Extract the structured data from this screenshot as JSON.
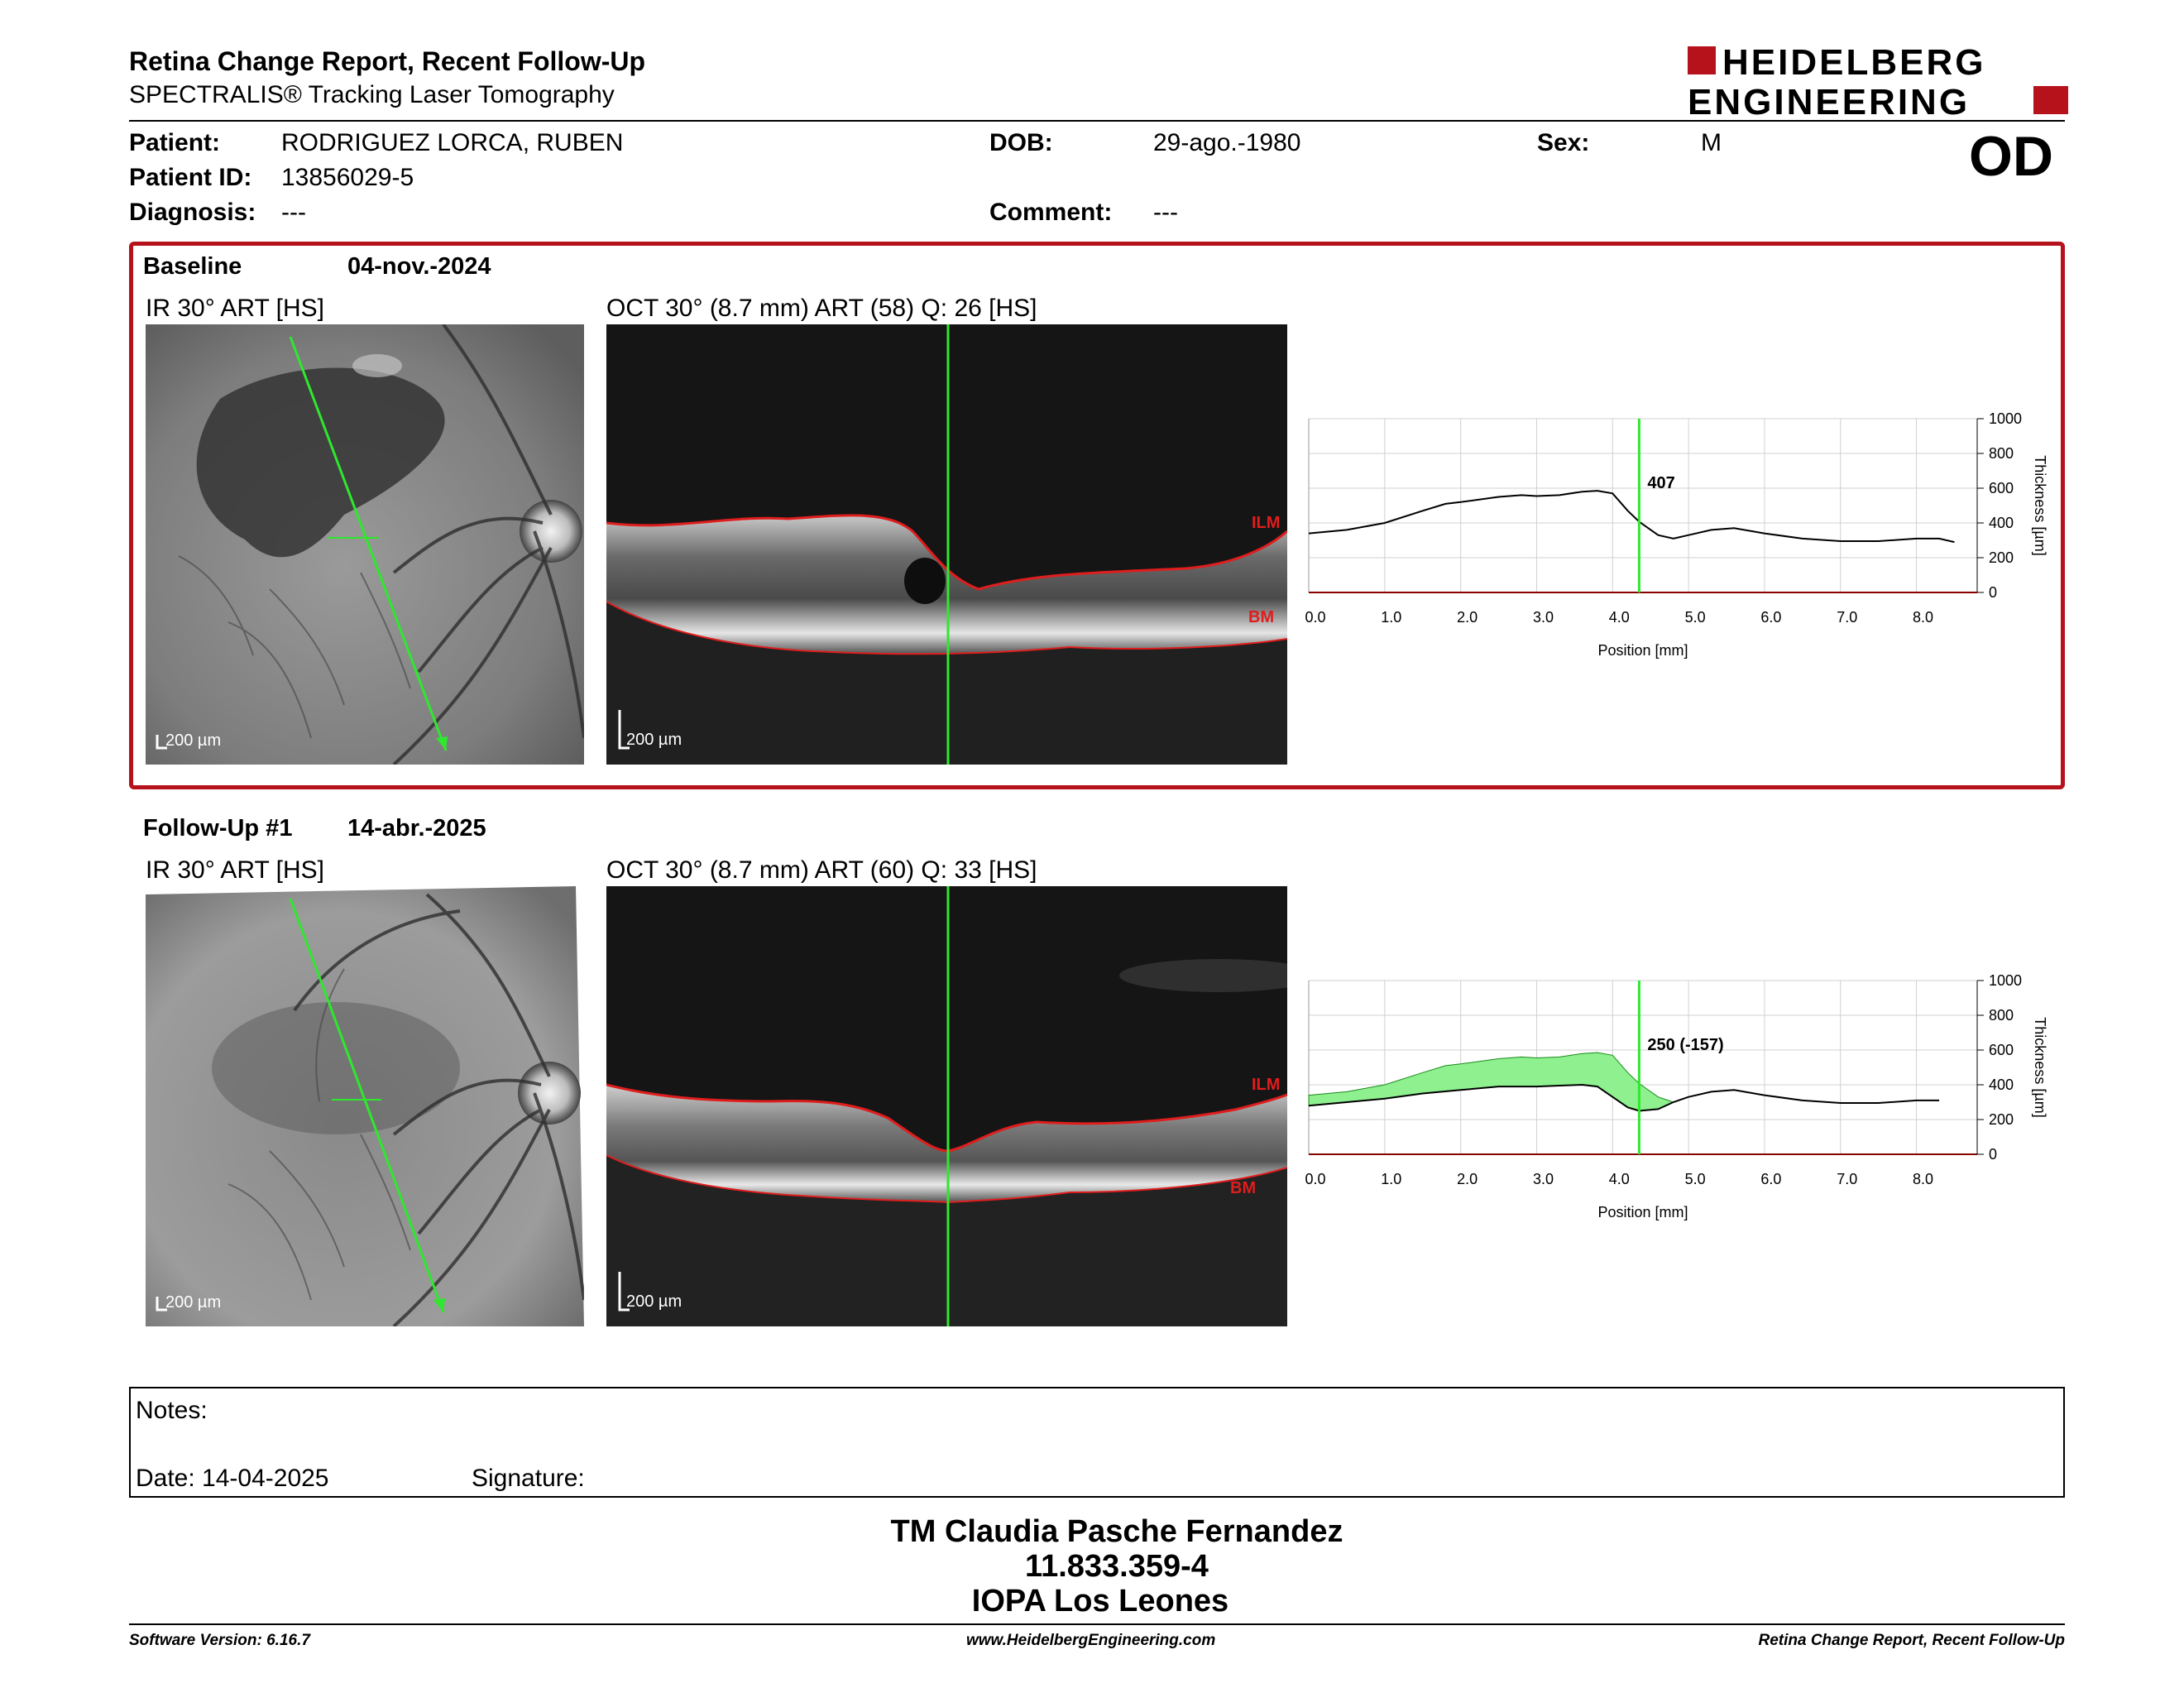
{
  "header": {
    "title": "Retina Change Report, Recent Follow-Up",
    "subtitle": "SPECTRALIS® Tracking Laser Tomography",
    "logo_line1": "HEIDELBERG",
    "logo_line2": "ENGINEERING",
    "brand_color": "#b5121b"
  },
  "patient": {
    "patient_label": "Patient:",
    "patient_value": "RODRIGUEZ LORCA, RUBEN",
    "id_label": "Patient ID:",
    "id_value": "13856029-5",
    "diagnosis_label": "Diagnosis:",
    "diagnosis_value": "---",
    "dob_label": "DOB:",
    "dob_value": "29-ago.-1980",
    "comment_label": "Comment:",
    "comment_value": "---",
    "sex_label": "Sex:",
    "sex_value": "M",
    "eye": "OD"
  },
  "baseline": {
    "label": "Baseline",
    "date": "04-nov.-2024",
    "ir_label": "IR 30° ART [HS]",
    "oct_label": "OCT 30° (8.7 mm) ART (58) Q: 26 [HS]",
    "ir_scale": "200 µm",
    "oct_scale": "200 µm",
    "ilm": "ILM",
    "bm": "BM"
  },
  "followup": {
    "label": "Follow-Up #1",
    "date": "14-abr.-2025",
    "ir_label": "IR 30° ART [HS]",
    "oct_label": "OCT 30° (8.7 mm) ART (60) Q: 33 [HS]",
    "ir_scale": "200 µm",
    "oct_scale": "200 µm",
    "ilm": "ILM",
    "bm": "BM"
  },
  "chart_data": [
    {
      "type": "line",
      "id": "baseline-thickness",
      "xlabel": "Position [mm]",
      "ylabel": "Thickness [µm]",
      "xlim": [
        0,
        8.8
      ],
      "ylim": [
        0,
        1000
      ],
      "x_ticks": [
        "0.0",
        "1.0",
        "2.0",
        "3.0",
        "4.0",
        "5.0",
        "6.0",
        "7.0",
        "8.0"
      ],
      "y_ticks": [
        "0",
        "200",
        "400",
        "600",
        "800",
        "1000"
      ],
      "cursor_x": 4.35,
      "cursor_label": "407",
      "grid": true,
      "series": [
        {
          "x": [
            0,
            0.5,
            1.0,
            1.5,
            1.8,
            2.0,
            2.5,
            2.8,
            3.0,
            3.3,
            3.6,
            3.8,
            4.0,
            4.2,
            4.35,
            4.6,
            4.8,
            5.0,
            5.3,
            5.6,
            6.0,
            6.5,
            7.0,
            7.5,
            8.0,
            8.3,
            8.5
          ],
          "y": [
            340,
            360,
            400,
            470,
            510,
            520,
            550,
            560,
            555,
            560,
            580,
            585,
            570,
            470,
            407,
            330,
            310,
            330,
            360,
            370,
            340,
            310,
            295,
            295,
            310,
            310,
            290
          ]
        }
      ]
    },
    {
      "type": "area",
      "id": "followup-thickness",
      "xlabel": "Position [mm]",
      "ylabel": "Thickness [µm]",
      "xlim": [
        0,
        8.8
      ],
      "ylim": [
        0,
        1000
      ],
      "x_ticks": [
        "0.0",
        "1.0",
        "2.0",
        "3.0",
        "4.0",
        "5.0",
        "6.0",
        "7.0",
        "8.0"
      ],
      "y_ticks": [
        "0",
        "200",
        "400",
        "600",
        "800",
        "1000"
      ],
      "cursor_x": 4.35,
      "cursor_label": "250 (-157)",
      "grid": true,
      "fill_color": "#8ef08e",
      "series": [
        {
          "x": [
            0,
            0.5,
            1.0,
            1.5,
            2.0,
            2.5,
            3.0,
            3.3,
            3.6,
            3.8,
            4.0,
            4.2,
            4.35,
            4.6,
            4.8,
            5.0,
            5.3,
            5.6,
            6.0,
            6.5,
            7.0,
            7.5,
            8.0,
            8.3
          ],
          "y": [
            280,
            300,
            320,
            350,
            370,
            390,
            390,
            395,
            400,
            390,
            330,
            270,
            250,
            260,
            300,
            330,
            360,
            370,
            340,
            310,
            295,
            295,
            310,
            310
          ]
        },
        {
          "x": [
            0,
            0.5,
            1.0,
            1.5,
            1.8,
            2.0,
            2.5,
            2.8,
            3.0,
            3.3,
            3.6,
            3.8,
            4.0,
            4.2,
            4.35,
            4.6,
            4.8
          ],
          "y": [
            340,
            360,
            400,
            470,
            510,
            520,
            550,
            560,
            555,
            560,
            580,
            585,
            570,
            470,
            407,
            330,
            300
          ]
        }
      ]
    }
  ],
  "notes": {
    "notes_label": "Notes:",
    "date_label": "Date: 14-04-2025",
    "signature_label": "Signature:"
  },
  "signature": {
    "line1": "TM Claudia Pasche Fernandez",
    "line2": "11.833.359-4",
    "line3": "IOPA Los Leones"
  },
  "footer": {
    "left": "Software Version: 6.16.7",
    "center": "www.HeidelbergEngineering.com",
    "right": "Retina Change Report, Recent Follow-Up"
  }
}
